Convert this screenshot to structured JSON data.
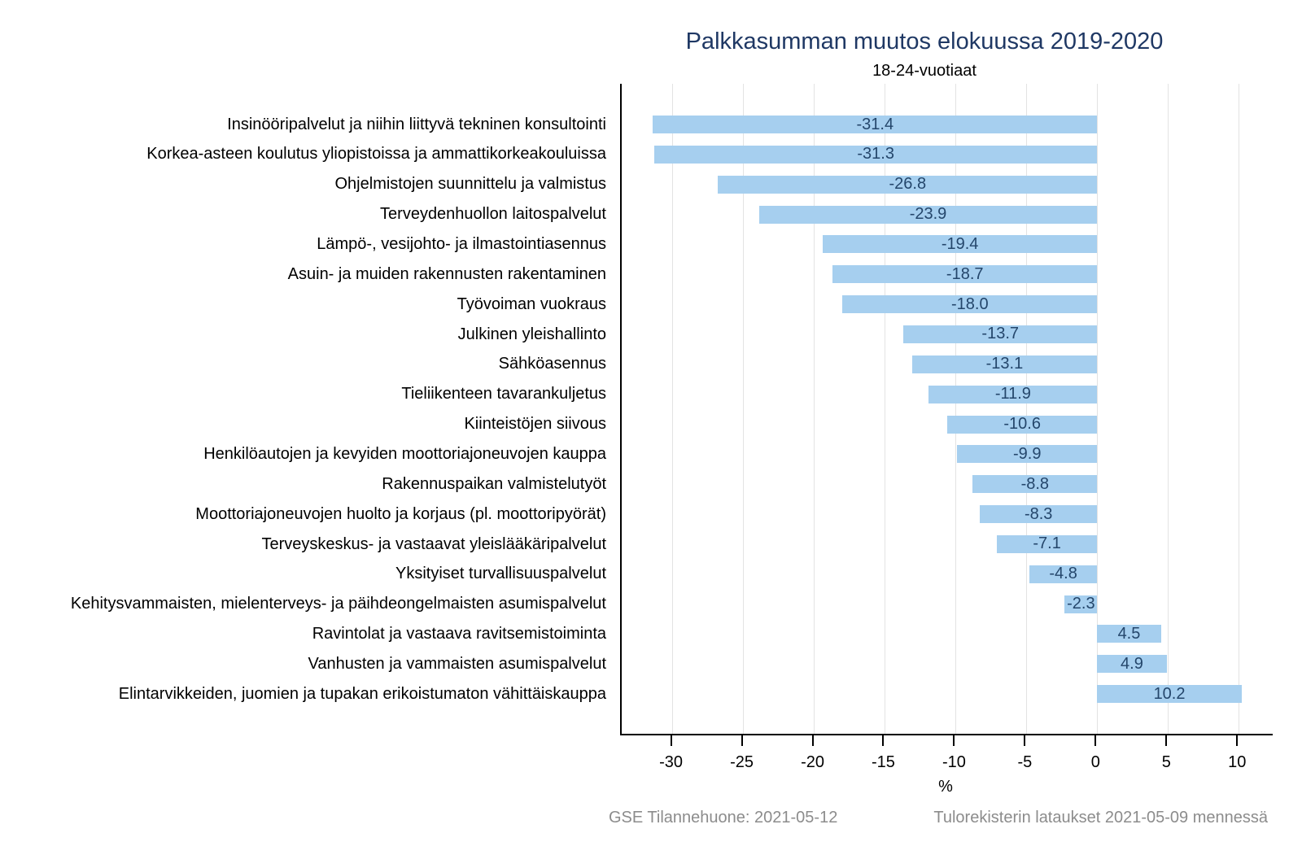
{
  "chart_data": {
    "type": "bar",
    "orientation": "horizontal",
    "title": "Palkkasumman muutos elokuussa 2019-2020",
    "subtitle": "18-24-vuotiaat",
    "xlabel": "%",
    "xlim": [
      -33.6,
      12.4
    ],
    "xticks": [
      -30,
      -25,
      -20,
      -15,
      -10,
      -5,
      0,
      5,
      10
    ],
    "grid": true,
    "legend_position": "none",
    "value_label_decimals": 1,
    "categories": [
      "Insinööripalvelut ja niihin liittyvä tekninen konsultointi",
      "Korkea-asteen koulutus yliopistoissa ja ammattikorkeakouluissa",
      "Ohjelmistojen suunnittelu ja valmistus",
      "Terveydenhuollon laitospalvelut",
      "Lämpö-, vesijohto- ja ilmastointiasennus",
      "Asuin- ja muiden rakennusten rakentaminen",
      "Työvoiman vuokraus",
      "Julkinen yleishallinto",
      "Sähköasennus",
      "Tieliikenteen tavarankuljetus",
      "Kiinteistöjen siivous",
      "Henkilöautojen ja kevyiden moottoriajoneuvojen kauppa",
      "Rakennuspaikan valmistelutyöt",
      "Moottoriajoneuvojen huolto ja korjaus (pl. moottoripyörät)",
      "Terveyskeskus- ja vastaavat yleislääkäripalvelut",
      "Yksityiset turvallisuuspalvelut",
      "Kehitysvammaisten, mielenterveys- ja päihdeongelmaisten asumispalvelut",
      "Ravintolat ja vastaava ravitsemistoiminta",
      "Vanhusten ja vammaisten asumispalvelut",
      "Elintarvikkeiden, juomien ja tupakan erikoistumaton vähittäiskauppa"
    ],
    "values": [
      -31.4,
      -31.3,
      -26.8,
      -23.9,
      -19.4,
      -18.7,
      -18.0,
      -13.7,
      -13.1,
      -11.9,
      -10.6,
      -9.9,
      -8.8,
      -8.3,
      -7.1,
      -4.8,
      -2.3,
      4.5,
      4.9,
      10.2
    ],
    "colors": {
      "bar": "#A6CFEF",
      "value_label": "#24466B",
      "title": "#1F3864",
      "text": "#000000",
      "gridline": "#E3E3E3",
      "axis": "#000000",
      "footer": "#8C8C8C"
    }
  },
  "footer": {
    "left": "GSE Tilannehuone: 2021-05-12",
    "right": "Tulorekisterin lataukset 2021-05-09 mennessä"
  }
}
